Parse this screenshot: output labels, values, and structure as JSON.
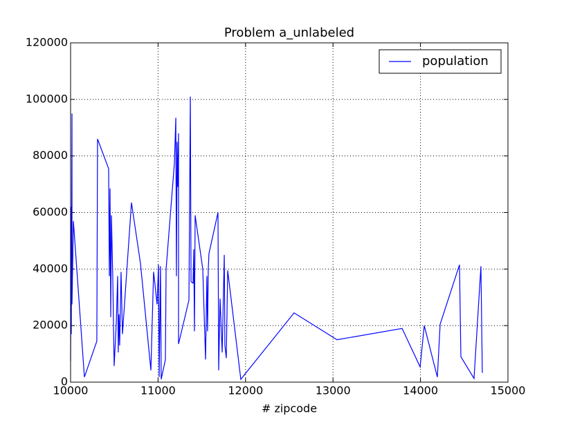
{
  "chart_data": {
    "type": "line",
    "title": "Problem a_unlabeled",
    "xlabel": "# zipcode",
    "x": [
      10000,
      10008,
      10008,
      10016,
      10016,
      10032,
      10158,
      10300,
      10308,
      10435,
      10443,
      10451,
      10459,
      10467,
      10482,
      10498,
      10522,
      10538,
      10545,
      10553,
      10561,
      10577,
      10593,
      10696,
      10799,
      10918,
      10949,
      10989,
      11005,
      11013,
      11028,
      11036,
      11084,
      11092,
      11187,
      11203,
      11210,
      11218,
      11226,
      11234,
      11234,
      11353,
      11369,
      11377,
      11400,
      11408,
      11416,
      11424,
      11511,
      11543,
      11558,
      11566,
      11574,
      11582,
      11685,
      11693,
      11709,
      11733,
      11757,
      11764,
      11780,
      11796,
      11946,
      12555,
      13046,
      13790,
      13996,
      14043,
      14193,
      14225,
      14446,
      14462,
      14612,
      14691,
      14707
    ],
    "series": [
      {
        "name": "population",
        "color": "#0000ff",
        "values": [
          7500,
          62000,
          17000,
          95000,
          27500,
          57000,
          1800,
          14500,
          86000,
          75500,
          37500,
          68500,
          23000,
          59000,
          37500,
          5700,
          20500,
          37500,
          10500,
          24000,
          13000,
          39000,
          17000,
          63500,
          42000,
          4200,
          39000,
          27500,
          41500,
          1800,
          41000,
          1000,
          8000,
          40000,
          77500,
          93500,
          37500,
          85000,
          69000,
          88000,
          13500,
          29000,
          101000,
          35500,
          35000,
          47000,
          18000,
          59000,
          40000,
          8000,
          37500,
          18000,
          40000,
          45500,
          60000,
          4200,
          29500,
          10500,
          45000,
          13000,
          8500,
          39500,
          1000,
          24500,
          15000,
          19000,
          5400,
          20000,
          1800,
          20500,
          41500,
          9000,
          1300,
          41000,
          3300
        ]
      }
    ],
    "xlim": [
      10000,
      15000
    ],
    "xticks": [
      10000,
      11000,
      12000,
      13000,
      14000,
      15000
    ],
    "ylim": [
      0,
      120000
    ],
    "yticks": [
      0,
      20000,
      40000,
      60000,
      80000,
      100000,
      120000
    ],
    "grid": true,
    "legend": "upper-right"
  }
}
